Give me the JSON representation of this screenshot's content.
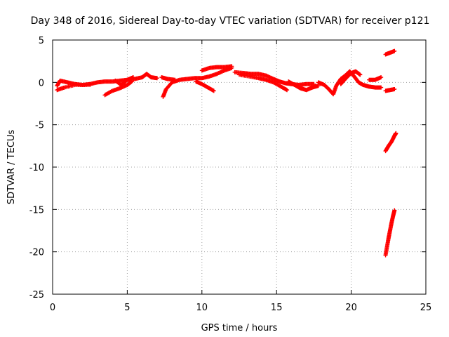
{
  "chart_data": {
    "type": "scatter",
    "title": "Day 348 of 2016, Sidereal Day-to-day VTEC variation (SDTVAR) for receiver p121",
    "xlabel": "GPS time / hours",
    "ylabel": "SDTVAR / TECUs",
    "xlim": [
      0,
      25
    ],
    "ylim": [
      -25,
      5
    ],
    "xticks": [
      0,
      5,
      10,
      15,
      20,
      25
    ],
    "yticks": [
      -25,
      -20,
      -15,
      -10,
      -5,
      0,
      5
    ],
    "grid": true,
    "marker": "plus",
    "series": [
      {
        "name": "SDTVAR",
        "color": "#ff0000",
        "segments": [
          [
            [
              0.3,
              -0.4
            ],
            [
              0.5,
              0.2
            ],
            [
              1.0,
              0.0
            ],
            [
              1.5,
              -0.2
            ],
            [
              2.0,
              -0.3
            ],
            [
              2.5,
              -0.2
            ],
            [
              3.0,
              0.0
            ],
            [
              3.5,
              0.1
            ],
            [
              4.0,
              0.1
            ],
            [
              4.5,
              0.2
            ],
            [
              5.0,
              0.3
            ],
            [
              5.5,
              0.4
            ],
            [
              6.0,
              0.6
            ],
            [
              6.3,
              1.0
            ],
            [
              6.6,
              0.6
            ],
            [
              7.0,
              0.5
            ]
          ],
          [
            [
              0.3,
              -0.9
            ],
            [
              0.8,
              -0.6
            ],
            [
              1.5,
              -0.3
            ],
            [
              2.5,
              -0.3
            ]
          ],
          [
            [
              3.5,
              -1.5
            ],
            [
              4.0,
              -1.0
            ],
            [
              4.5,
              -0.7
            ],
            [
              5.0,
              -0.3
            ],
            [
              5.3,
              0.1
            ]
          ],
          [
            [
              4.2,
              0.2
            ],
            [
              4.6,
              -0.3
            ],
            [
              5.0,
              0.3
            ],
            [
              5.4,
              0.6
            ]
          ],
          [
            [
              7.4,
              -1.7
            ],
            [
              7.6,
              -0.8
            ],
            [
              8.0,
              0.0
            ],
            [
              8.5,
              0.3
            ],
            [
              9.0,
              0.4
            ],
            [
              9.5,
              0.5
            ],
            [
              10.0,
              0.5
            ],
            [
              10.5,
              0.7
            ],
            [
              11.0,
              1.0
            ],
            [
              11.5,
              1.4
            ],
            [
              12.0,
              1.7
            ]
          ],
          [
            [
              7.3,
              0.6
            ],
            [
              7.7,
              0.4
            ],
            [
              8.2,
              0.3
            ]
          ],
          [
            [
              10.0,
              1.4
            ],
            [
              10.5,
              1.7
            ],
            [
              11.0,
              1.8
            ],
            [
              11.5,
              1.8
            ],
            [
              12.0,
              1.9
            ]
          ],
          [
            [
              9.6,
              0.1
            ],
            [
              10.0,
              -0.2
            ],
            [
              10.4,
              -0.6
            ],
            [
              10.8,
              -1.0
            ]
          ],
          [
            [
              12.2,
              1.2
            ],
            [
              12.8,
              1.1
            ],
            [
              13.3,
              1.0
            ],
            [
              13.8,
              1.0
            ],
            [
              14.3,
              0.8
            ],
            [
              14.8,
              0.4
            ],
            [
              15.2,
              0.1
            ],
            [
              15.6,
              -0.1
            ],
            [
              16.0,
              -0.2
            ],
            [
              16.5,
              -0.3
            ],
            [
              17.0,
              -0.2
            ],
            [
              17.5,
              -0.2
            ]
          ],
          [
            [
              12.5,
              0.9
            ],
            [
              13.2,
              0.7
            ],
            [
              13.8,
              0.5
            ],
            [
              14.3,
              0.3
            ],
            [
              14.8,
              0.0
            ],
            [
              15.3,
              -0.5
            ],
            [
              15.7,
              -0.9
            ]
          ],
          [
            [
              15.8,
              0.1
            ],
            [
              16.2,
              -0.3
            ],
            [
              16.6,
              -0.7
            ],
            [
              17.0,
              -0.9
            ],
            [
              17.4,
              -0.6
            ],
            [
              17.8,
              -0.4
            ]
          ],
          [
            [
              17.8,
              0.0
            ],
            [
              18.2,
              -0.3
            ],
            [
              18.5,
              -0.8
            ],
            [
              18.8,
              -1.4
            ],
            [
              19.0,
              -0.4
            ],
            [
              19.3,
              0.4
            ],
            [
              19.6,
              0.8
            ],
            [
              19.9,
              1.3
            ],
            [
              20.2,
              0.7
            ],
            [
              20.5,
              0.0
            ],
            [
              20.8,
              -0.3
            ],
            [
              21.2,
              -0.5
            ],
            [
              21.6,
              -0.6
            ],
            [
              22.0,
              -0.6
            ]
          ],
          [
            [
              19.3,
              -0.2
            ],
            [
              19.6,
              0.4
            ],
            [
              20.0,
              1.1
            ],
            [
              20.3,
              1.3
            ],
            [
              20.6,
              0.9
            ]
          ],
          [
            [
              21.2,
              0.3
            ],
            [
              21.6,
              0.3
            ],
            [
              22.0,
              0.6
            ]
          ],
          [
            [
              22.3,
              3.3
            ],
            [
              22.6,
              3.5
            ],
            [
              22.9,
              3.7
            ]
          ],
          [
            [
              22.3,
              -1.0
            ],
            [
              22.6,
              -0.9
            ],
            [
              22.9,
              -0.8
            ]
          ],
          [
            [
              22.3,
              -8.1
            ],
            [
              22.5,
              -7.5
            ],
            [
              22.7,
              -7.0
            ],
            [
              22.9,
              -6.3
            ],
            [
              23.0,
              -6.0
            ]
          ],
          [
            [
              22.3,
              -20.4
            ],
            [
              22.4,
              -19.4
            ],
            [
              22.5,
              -18.4
            ],
            [
              22.6,
              -17.5
            ],
            [
              22.7,
              -16.6
            ],
            [
              22.8,
              -15.8
            ],
            [
              22.9,
              -15.1
            ]
          ]
        ]
      }
    ]
  }
}
